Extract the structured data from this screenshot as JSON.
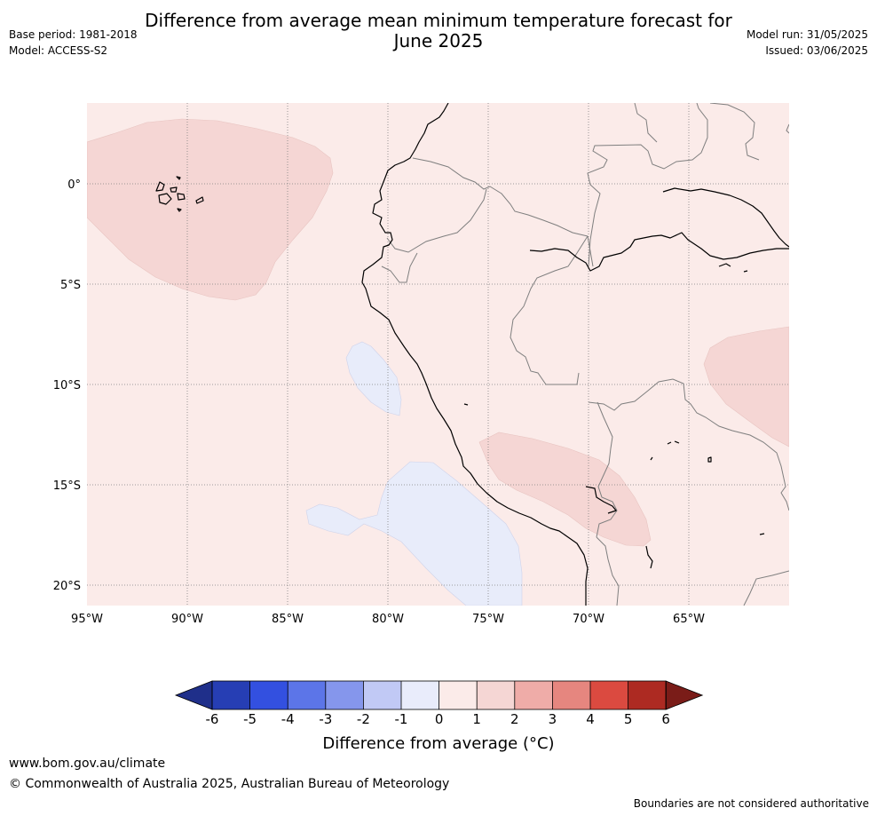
{
  "header": {
    "title_line1": "Difference from average mean minimum temperature forecast for",
    "title_line2": "June 2025",
    "base_period": "Base period: 1981-2018",
    "model": "Model: ACCESS-S2",
    "model_run": "Model run: 31/05/2025",
    "issued": "Issued: 03/06/2025"
  },
  "map": {
    "lon_labels": [
      "95°W",
      "90°W",
      "85°W",
      "80°W",
      "75°W",
      "70°W",
      "65°W"
    ],
    "lat_labels": [
      "0°",
      "5°S",
      "10°S",
      "15°S",
      "20°S"
    ],
    "background_anomaly_band": "0 to 1",
    "colors": {
      "band_0_1": "#fbebe9",
      "band_1_2": "#f5d6d4",
      "band_m1_0": "#e8ecfa",
      "coast": "#000000",
      "border": "#7f7f7f",
      "grid": "#808080"
    }
  },
  "colorbar": {
    "tick_labels": [
      "-6",
      "-5",
      "-4",
      "-3",
      "-2",
      "-1",
      "0",
      "1",
      "2",
      "3",
      "4",
      "5",
      "6"
    ],
    "colors": [
      "#1f2f8a",
      "#263eb4",
      "#3350e0",
      "#5c75e8",
      "#8596ec",
      "#c1c9f5",
      "#e9ecfb",
      "#fbebe9",
      "#f5d6d4",
      "#efaca8",
      "#e6867f",
      "#db4a40",
      "#ad2a22",
      "#7a1c18"
    ],
    "label": "Difference from average (°C)"
  },
  "footer": {
    "url": "www.bom.gov.au/climate",
    "copyright": "© Commonwealth of Australia 2025, Australian Bureau of Meteorology",
    "disclaimer": "Boundaries are not considered authoritative"
  }
}
